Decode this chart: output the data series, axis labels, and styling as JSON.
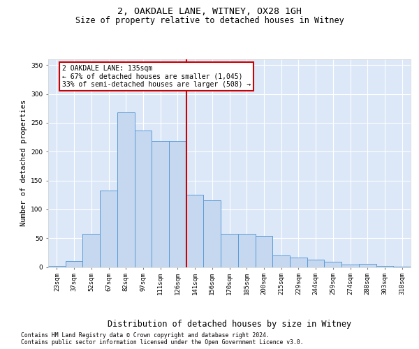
{
  "title1": "2, OAKDALE LANE, WITNEY, OX28 1GH",
  "title2": "Size of property relative to detached houses in Witney",
  "xlabel": "Distribution of detached houses by size in Witney",
  "ylabel": "Number of detached properties",
  "categories": [
    "23sqm",
    "37sqm",
    "52sqm",
    "67sqm",
    "82sqm",
    "97sqm",
    "111sqm",
    "126sqm",
    "141sqm",
    "156sqm",
    "170sqm",
    "185sqm",
    "200sqm",
    "215sqm",
    "229sqm",
    "244sqm",
    "259sqm",
    "274sqm",
    "288sqm",
    "303sqm",
    "318sqm"
  ],
  "values": [
    2,
    10,
    57,
    133,
    268,
    236,
    219,
    219,
    125,
    116,
    57,
    57,
    54,
    20,
    16,
    13,
    9,
    4,
    5,
    2,
    1
  ],
  "bar_color": "#c5d8f0",
  "bar_edge_color": "#5b9bd5",
  "vline_color": "#cc0000",
  "vline_x": 7.5,
  "annotation_line1": "2 OAKDALE LANE: 135sqm",
  "annotation_line2": "← 67% of detached houses are smaller (1,045)",
  "annotation_line3": "33% of semi-detached houses are larger (508) →",
  "annotation_box_edge": "#cc0000",
  "annotation_box_fill": "#ffffff",
  "ylim_max": 360,
  "yticks": [
    0,
    50,
    100,
    150,
    200,
    250,
    300,
    350
  ],
  "footnote1": "Contains HM Land Registry data © Crown copyright and database right 2024.",
  "footnote2": "Contains public sector information licensed under the Open Government Licence v3.0.",
  "bg_color": "#dce8f8",
  "title1_fontsize": 9.5,
  "title2_fontsize": 8.5,
  "xlabel_fontsize": 8.5,
  "ylabel_fontsize": 7.5,
  "tick_fontsize": 6.5,
  "footnote_fontsize": 5.8,
  "ann_fontsize": 7.0
}
